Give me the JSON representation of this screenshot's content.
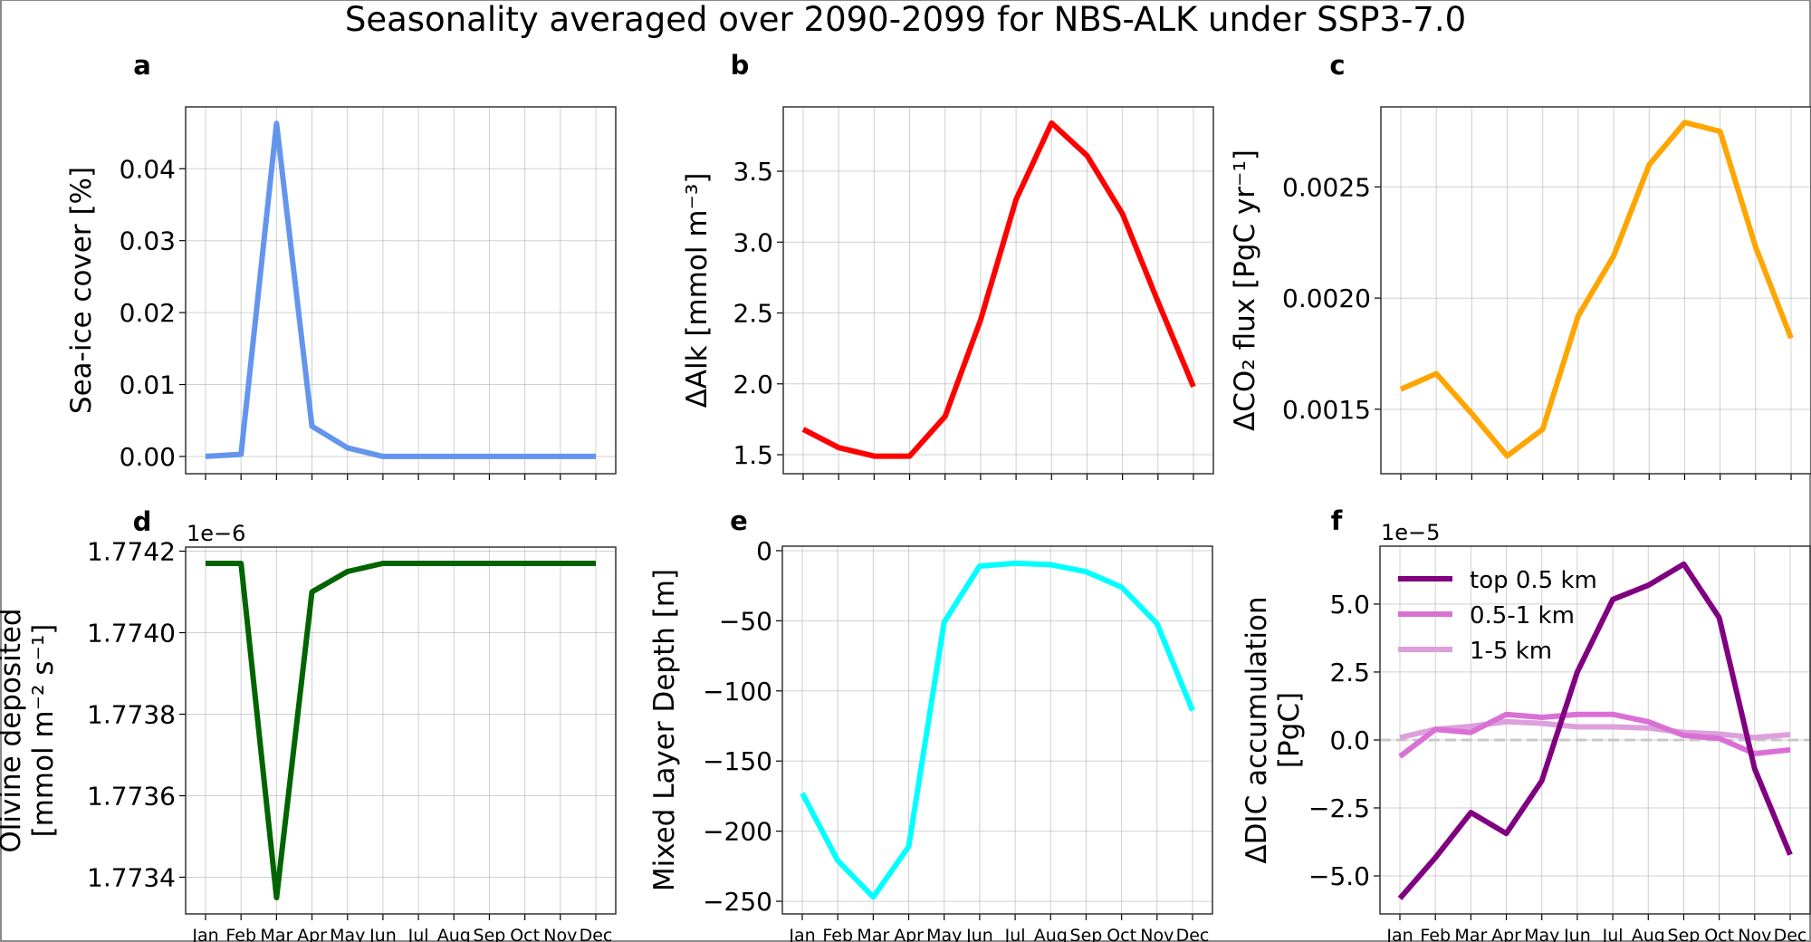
{
  "title": "Seasonality averaged over 2090-2099 for NBS-ALK under SSP3-7.0",
  "chart_data": [
    {
      "id": "a",
      "type": "line",
      "panel_label": "a",
      "ylabel": "Sea-ice cover [%]",
      "ylabel_lines": [
        "Sea-ice cover [%]"
      ],
      "offset_text": "",
      "categories": [
        "Jan",
        "Feb",
        "Mar",
        "Apr",
        "May",
        "Jun",
        "Jul",
        "Aug",
        "Sep",
        "Oct",
        "Nov",
        "Dec"
      ],
      "show_xticklabels": false,
      "ylim": [
        -0.0024,
        0.0486
      ],
      "yticks": [
        0.0,
        0.01,
        0.02,
        0.03,
        0.04
      ],
      "ytick_labels": [
        "0.00",
        "0.01",
        "0.02",
        "0.03",
        "0.04"
      ],
      "grid": true,
      "series": [
        {
          "name": "Sea-ice cover",
          "color": "#6495ED",
          "values": [
            0.0,
            0.0003,
            0.0463,
            0.0042,
            0.0012,
            0.0,
            0.0,
            0.0,
            0.0,
            0.0,
            0.0,
            0.0
          ]
        }
      ]
    },
    {
      "id": "b",
      "type": "line",
      "panel_label": "b",
      "ylabel": "ΔAlk [mmol m⁻³]",
      "ylabel_lines": [
        "ΔAlk [mmol m⁻³]"
      ],
      "offset_text": "",
      "categories": [
        "Jan",
        "Feb",
        "Mar",
        "Apr",
        "May",
        "Jun",
        "Jul",
        "Aug",
        "Sep",
        "Oct",
        "Nov",
        "Dec"
      ],
      "show_xticklabels": false,
      "ylim": [
        1.366,
        3.954
      ],
      "yticks": [
        1.5,
        2.0,
        2.5,
        3.0,
        3.5
      ],
      "ytick_labels": [
        "1.5",
        "2.0",
        "2.5",
        "3.0",
        "3.5"
      ],
      "grid": true,
      "series": [
        {
          "name": "ΔAlk",
          "color": "#FF0000",
          "values": [
            1.68,
            1.55,
            1.49,
            1.49,
            1.77,
            2.45,
            3.3,
            3.84,
            3.61,
            3.2,
            2.58,
            1.98
          ]
        }
      ]
    },
    {
      "id": "c",
      "type": "line",
      "panel_label": "c",
      "ylabel": "ΔCO₂ flux [PgC yr⁻¹]",
      "ylabel_lines": [
        "ΔCO₂ flux [PgC yr⁻¹]"
      ],
      "offset_text": "",
      "categories": [
        "Jan",
        "Feb",
        "Mar",
        "Apr",
        "May",
        "Jun",
        "Jul",
        "Aug",
        "Sep",
        "Oct",
        "Nov",
        "Dec"
      ],
      "show_xticklabels": false,
      "ylim": [
        0.00121,
        0.00286
      ],
      "yticks": [
        0.0015,
        0.002,
        0.0025
      ],
      "ytick_labels": [
        "0.0015",
        "0.0020",
        "0.0025"
      ],
      "grid": true,
      "series": [
        {
          "name": "ΔCO2 flux",
          "color": "#FFA500",
          "values": [
            0.00159,
            0.00166,
            0.00148,
            0.00129,
            0.00141,
            0.00192,
            0.00219,
            0.0026,
            0.00279,
            0.00275,
            0.00223,
            0.00182
          ]
        }
      ]
    },
    {
      "id": "d",
      "type": "line",
      "panel_label": "d",
      "ylabel": "Olivine deposited [mmol m⁻² s⁻¹]",
      "ylabel_lines": [
        "Olivine deposited",
        "[mmol m⁻² s⁻¹]"
      ],
      "offset_text": "1e−6",
      "categories": [
        "Jan",
        "Feb",
        "Mar",
        "Apr",
        "May",
        "Jun",
        "Jul",
        "Aug",
        "Sep",
        "Oct",
        "Nov",
        "Dec"
      ],
      "show_xticklabels": true,
      "ylim": [
        1.77331,
        1.77421
      ],
      "yticks": [
        1.7734,
        1.7736,
        1.7738,
        1.774,
        1.7742
      ],
      "ytick_labels": [
        "1.7734",
        "1.7736",
        "1.7738",
        "1.7740",
        "1.7742"
      ],
      "grid": true,
      "series": [
        {
          "name": "Olivine deposited",
          "color": "#006400",
          "values": [
            1.77417,
            1.77417,
            1.77335,
            1.7741,
            1.77415,
            1.77417,
            1.77417,
            1.77417,
            1.77417,
            1.77417,
            1.77417,
            1.77417
          ]
        }
      ]
    },
    {
      "id": "e",
      "type": "line",
      "panel_label": "e",
      "ylabel": "Mixed Layer Depth [m]",
      "ylabel_lines": [
        "Mixed Layer Depth [m]"
      ],
      "offset_text": "",
      "categories": [
        "Jan",
        "Feb",
        "Mar",
        "Apr",
        "May",
        "Jun",
        "Jul",
        "Aug",
        "Sep",
        "Oct",
        "Nov",
        "Dec"
      ],
      "show_xticklabels": true,
      "ylim": [
        -259,
        3.2
      ],
      "yticks": [
        -250,
        -200,
        -150,
        -100,
        -50,
        0
      ],
      "ytick_labels": [
        "−250",
        "−200",
        "−150",
        "−100",
        "−50",
        "0"
      ],
      "grid": true,
      "series": [
        {
          "name": "Mixed Layer Depth",
          "color": "#00FFFF",
          "values": [
            -173,
            -221,
            -247,
            -211,
            -51,
            -11,
            -9,
            -10,
            -15,
            -26,
            -52,
            -114
          ]
        }
      ]
    },
    {
      "id": "f",
      "type": "line",
      "panel_label": "f",
      "ylabel": "ΔDIC accumulation [PgC]",
      "ylabel_lines": [
        "ΔDIC accumulation",
        "[PgC]"
      ],
      "offset_text": "1e−5",
      "categories": [
        "Jan",
        "Feb",
        "Mar",
        "Apr",
        "May",
        "Jun",
        "Jul",
        "Aug",
        "Sep",
        "Oct",
        "Nov",
        "Dec"
      ],
      "show_xticklabels": true,
      "ylim": [
        -6.4,
        7.13
      ],
      "yticks": [
        -5.0,
        -2.5,
        0.0,
        2.5,
        5.0
      ],
      "ytick_labels": [
        "−5.0",
        "−2.5",
        "0.0",
        "2.5",
        "5.0"
      ],
      "grid": true,
      "zero_line": {
        "value": 0,
        "color": "#C8C8C8",
        "style": "dashed"
      },
      "legend_position": "upper-left",
      "series": [
        {
          "name": "top 0.5 km",
          "color": "#800080",
          "values": [
            -5.83,
            -4.33,
            -2.67,
            -3.44,
            -1.5,
            2.5,
            5.17,
            5.69,
            6.47,
            4.5,
            -1.06,
            -4.22
          ]
        },
        {
          "name": "0.5-1 km",
          "color": "#DA70D6",
          "values": [
            -0.61,
            0.39,
            0.28,
            0.94,
            0.83,
            0.94,
            0.94,
            0.67,
            0.17,
            0.06,
            -0.5,
            -0.36
          ]
        },
        {
          "name": "1-5 km",
          "color": "#DDA0DD",
          "values": [
            0.09,
            0.39,
            0.5,
            0.67,
            0.61,
            0.48,
            0.48,
            0.44,
            0.28,
            0.22,
            0.09,
            0.2
          ]
        }
      ]
    }
  ]
}
